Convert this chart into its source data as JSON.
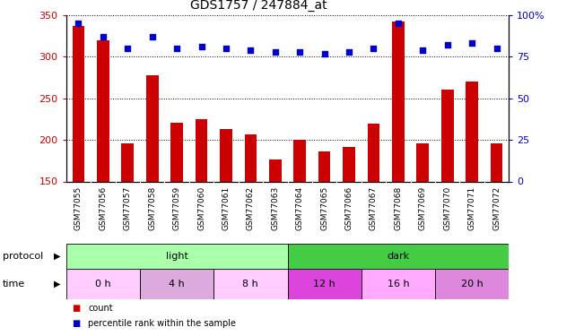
{
  "title": "GDS1757 / 247884_at",
  "categories": [
    "GSM77055",
    "GSM77056",
    "GSM77057",
    "GSM77058",
    "GSM77059",
    "GSM77060",
    "GSM77061",
    "GSM77062",
    "GSM77063",
    "GSM77064",
    "GSM77065",
    "GSM77066",
    "GSM77067",
    "GSM77068",
    "GSM77069",
    "GSM77070",
    "GSM77071",
    "GSM77072"
  ],
  "bar_values": [
    337,
    320,
    196,
    278,
    221,
    225,
    213,
    207,
    176,
    200,
    186,
    191,
    220,
    342,
    196,
    260,
    270,
    196
  ],
  "dot_values": [
    95,
    87,
    80,
    87,
    80,
    81,
    80,
    79,
    78,
    78,
    77,
    78,
    80,
    95,
    79,
    82,
    83,
    80
  ],
  "ylim_left": [
    150,
    350
  ],
  "ylim_right": [
    0,
    100
  ],
  "yticks_left": [
    150,
    200,
    250,
    300,
    350
  ],
  "yticks_right": [
    0,
    25,
    50,
    75,
    100
  ],
  "bar_color": "#cc0000",
  "dot_color": "#0000cc",
  "protocol_groups": [
    {
      "label": "light",
      "start": 0,
      "end": 9,
      "color": "#aaffaa"
    },
    {
      "label": "dark",
      "start": 9,
      "end": 18,
      "color": "#44cc44"
    }
  ],
  "time_groups": [
    {
      "label": "0 h",
      "start": 0,
      "end": 3,
      "color": "#ffccff"
    },
    {
      "label": "4 h",
      "start": 3,
      "end": 6,
      "color": "#ddaadd"
    },
    {
      "label": "8 h",
      "start": 6,
      "end": 9,
      "color": "#ffccff"
    },
    {
      "label": "12 h",
      "start": 9,
      "end": 12,
      "color": "#dd44dd"
    },
    {
      "label": "16 h",
      "start": 12,
      "end": 15,
      "color": "#ffaaff"
    },
    {
      "label": "20 h",
      "start": 15,
      "end": 18,
      "color": "#dd88dd"
    }
  ],
  "legend_items": [
    {
      "label": "count",
      "color": "#cc0000"
    },
    {
      "label": "percentile rank within the sample",
      "color": "#0000cc"
    }
  ],
  "ylabel_left_color": "#cc0000",
  "ylabel_right_color": "#0000cc",
  "protocol_label": "protocol",
  "time_label": "time",
  "bg_color": "#ffffff",
  "xtick_bg_color": "#cccccc"
}
